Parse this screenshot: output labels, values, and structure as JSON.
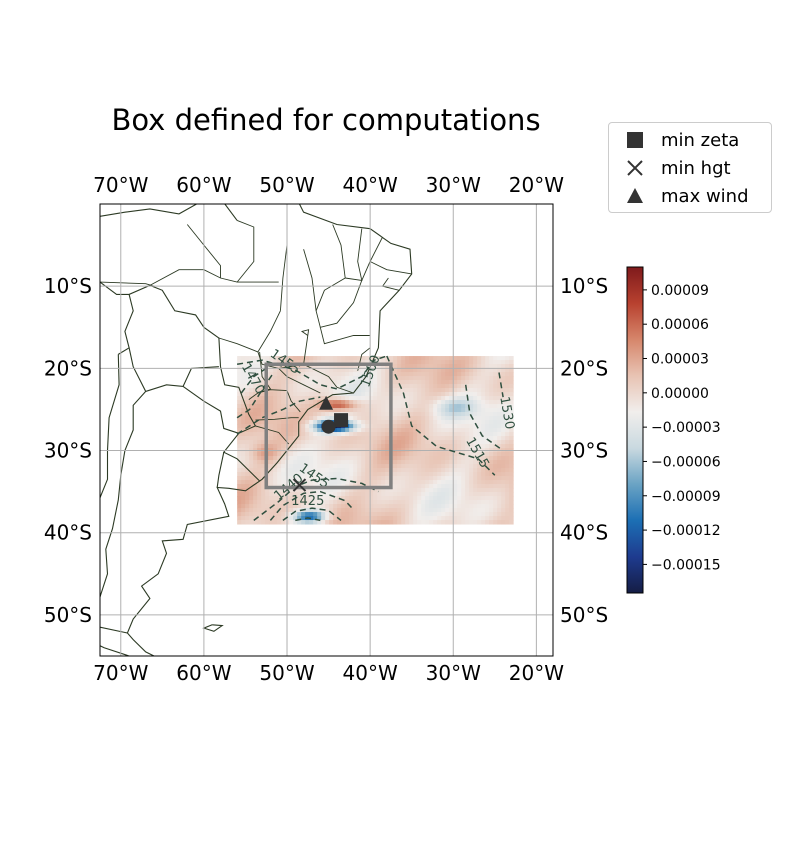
{
  "chart_data": {
    "type": "map",
    "title": "Box defined for computations",
    "lon_ticks": [
      "70°W",
      "60°W",
      "50°W",
      "40°W",
      "30°W",
      "20°W"
    ],
    "lat_ticks": [
      "10°S",
      "20°S",
      "30°S",
      "40°S",
      "50°S"
    ],
    "extent": {
      "lon_min": -72.5,
      "lon_max": -18,
      "lat_min": -55,
      "lat_max": 0
    },
    "field_extent": {
      "lon_min": -56,
      "lon_max": -23,
      "lat_min": -38.5,
      "lat_max": -18.5
    },
    "computation_box": {
      "lon_min": -52.5,
      "lon_max": -37.5,
      "lat_min": -34.5,
      "lat_max": -19.5
    },
    "markers": [
      {
        "name": "min zeta",
        "symbol": "square",
        "lon": -43.5,
        "lat": -26.3
      },
      {
        "name": "min hgt",
        "symbol": "x",
        "lon": -48.5,
        "lat": -34.2
      },
      {
        "name": "max wind",
        "symbol": "triangle",
        "lon": -45.3,
        "lat": -24.3
      },
      {
        "name": "",
        "symbol": "circle",
        "lon": -45,
        "lat": -27.1
      }
    ],
    "contour_labels": [
      {
        "text": "1455",
        "lon": -50.5,
        "lat": -19.6,
        "rot": 35
      },
      {
        "text": "1470",
        "lon": -54.5,
        "lat": -21.5,
        "rot": 60
      },
      {
        "text": "1500",
        "lon": -39.5,
        "lat": -20.5,
        "rot": -70
      },
      {
        "text": "1530",
        "lon": -24,
        "lat": -25.5,
        "rot": 80
      },
      {
        "text": "1515",
        "lon": -27.5,
        "lat": -30.5,
        "rot": 60
      },
      {
        "text": "1455",
        "lon": -47,
        "lat": -33.5,
        "rot": 35
      },
      {
        "text": "1440",
        "lon": -49.5,
        "lat": -34.8,
        "rot": -40
      },
      {
        "text": "1425",
        "lon": -47.5,
        "lat": -36.6,
        "rot": 0
      }
    ],
    "colorbar": {
      "min": -0.000175,
      "max": 0.00011,
      "ticks": [
        "0.00009",
        "0.00006",
        "0.00003",
        "0.00000",
        "−0.00003",
        "−0.00006",
        "−0.00009",
        "−0.00012",
        "−0.00015"
      ],
      "tick_values": [
        9e-05,
        6e-05,
        3e-05,
        0,
        -3e-05,
        -6e-05,
        -9e-05,
        -0.00012,
        -0.00015
      ],
      "cmap": [
        "#151d44",
        "#1e3b8f",
        "#1c6fb4",
        "#6aa3c4",
        "#c9d9e0",
        "#f1eeec",
        "#e8c3b3",
        "#d6866b",
        "#b8412f",
        "#7f1a1c"
      ]
    },
    "grid": true
  },
  "legend": {
    "items": [
      {
        "label": "min zeta",
        "icon": "square-marker-icon"
      },
      {
        "label": "min hgt",
        "icon": "x-marker-icon"
      },
      {
        "label": "max wind",
        "icon": "triangle-marker-icon"
      }
    ]
  },
  "colors": {
    "marker": "#333333",
    "box": "#808080",
    "coast": "#2c3a24",
    "grid": "#b0b0b0",
    "contour": "#2f4f3f"
  }
}
